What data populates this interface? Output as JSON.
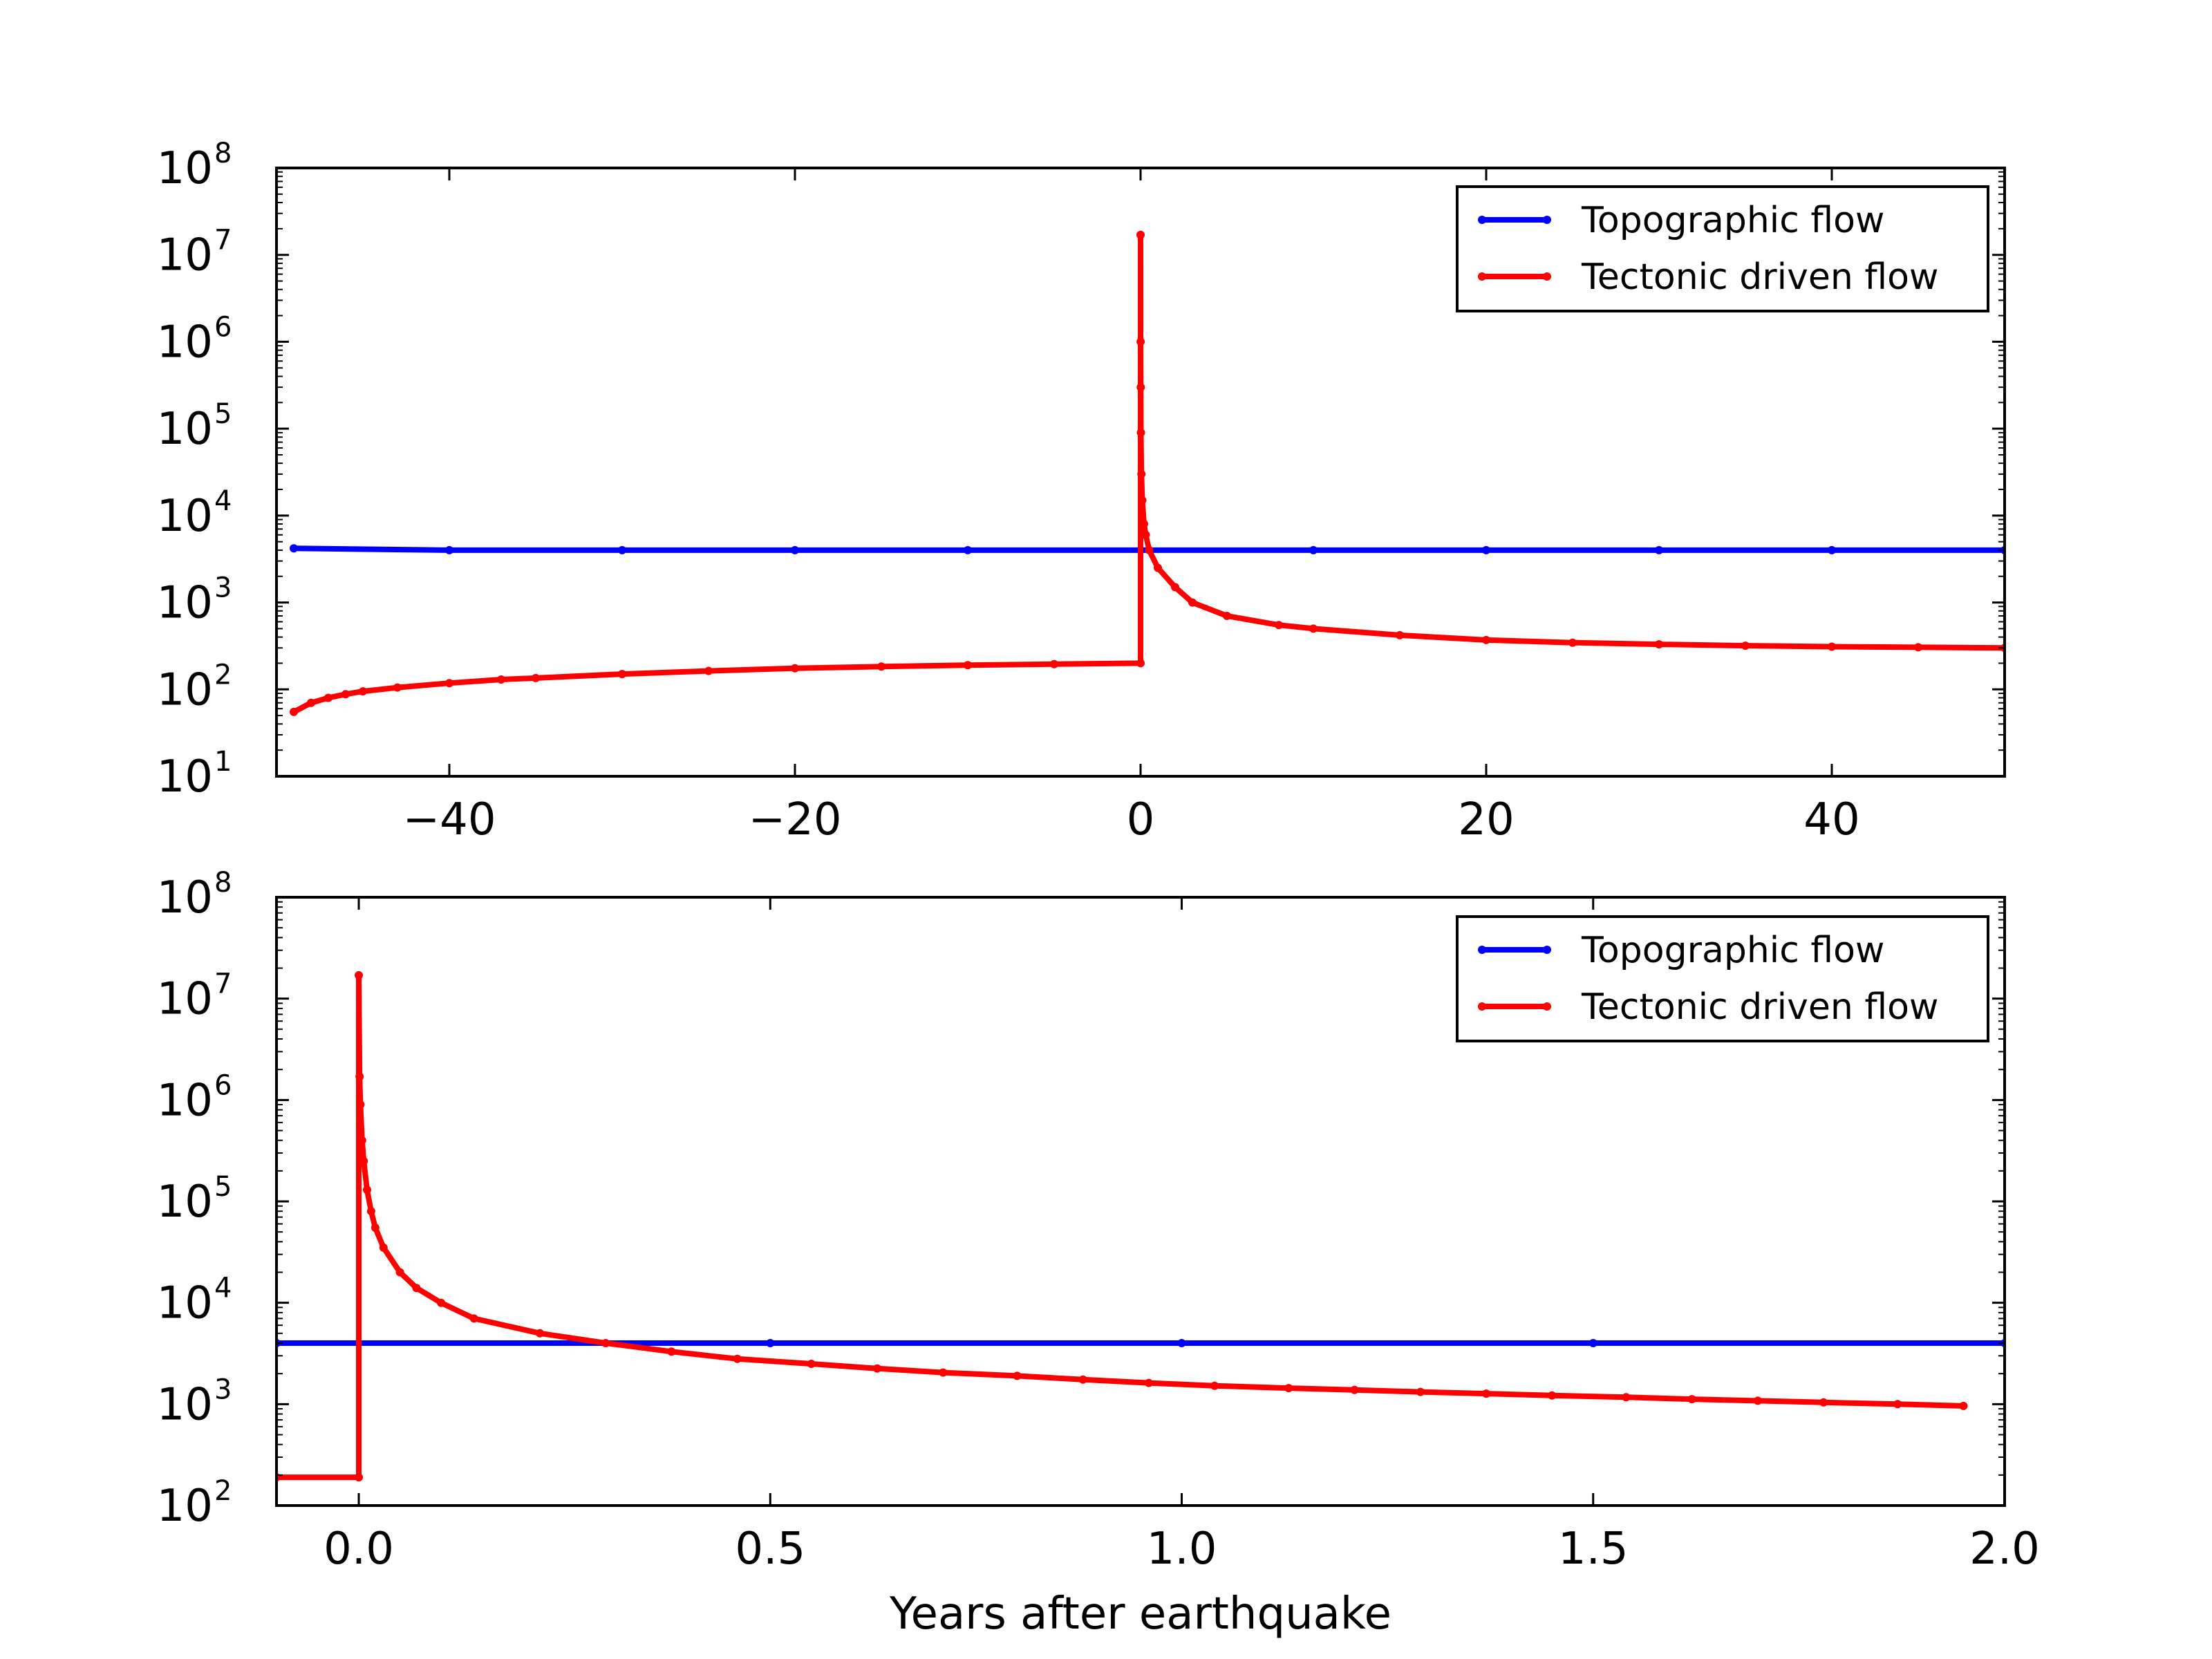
{
  "chart_data": [
    {
      "type": "line",
      "title": "",
      "xlabel": "",
      "ylabel": "",
      "xlim": [
        -50,
        50
      ],
      "ylim": [
        10,
        100000000
      ],
      "yscale": "log",
      "grid": false,
      "legend_position": "top-right",
      "x_ticks": [
        "−40",
        "−20",
        "0",
        "20",
        "40"
      ],
      "y_ticks": [
        {
          "base": "10",
          "exp": "1"
        },
        {
          "base": "10",
          "exp": "2"
        },
        {
          "base": "10",
          "exp": "3"
        },
        {
          "base": "10",
          "exp": "4"
        },
        {
          "base": "10",
          "exp": "5"
        },
        {
          "base": "10",
          "exp": "6"
        },
        {
          "base": "10",
          "exp": "7"
        },
        {
          "base": "10",
          "exp": "8"
        }
      ],
      "series": [
        {
          "name": "Topographic flow",
          "color": "#0000ff",
          "x": [
            -49,
            -40,
            -30,
            -20,
            -10,
            0,
            10,
            20,
            30,
            40,
            50
          ],
          "y": [
            4200,
            4000,
            4000,
            4000,
            4000,
            4000,
            4000,
            4000,
            4000,
            4000,
            4000
          ]
        },
        {
          "name": "Tectonic driven flow",
          "color": "#ff0000",
          "x": [
            -49,
            -48,
            -47,
            -46,
            -45,
            -43,
            -40,
            -37,
            -35,
            -30,
            -25,
            -20,
            -15,
            -10,
            -5,
            0,
            0,
            0.005,
            0.01,
            0.02,
            0.05,
            0.1,
            0.2,
            0.3,
            0.5,
            1,
            2,
            3,
            5,
            8,
            10,
            15,
            20,
            25,
            30,
            35,
            40,
            45,
            50
          ],
          "y": [
            55,
            70,
            80,
            88,
            95,
            105,
            118,
            130,
            135,
            150,
            163,
            175,
            183,
            190,
            195,
            200,
            17000000,
            1000000,
            300000,
            90000,
            30000,
            15000,
            8000,
            6000,
            4000,
            2500,
            1500,
            1000,
            700,
            550,
            500,
            420,
            370,
            345,
            330,
            318,
            310,
            305,
            300
          ]
        }
      ]
    },
    {
      "type": "line",
      "title": "",
      "xlabel": "Years after earthquake",
      "ylabel": "",
      "xlim": [
        -0.1,
        2.0
      ],
      "ylim": [
        100,
        100000000
      ],
      "yscale": "log",
      "grid": false,
      "legend_position": "top-right",
      "x_ticks": [
        "0.0",
        "0.5",
        "1.0",
        "1.5",
        "2.0"
      ],
      "y_ticks": [
        {
          "base": "10",
          "exp": "2"
        },
        {
          "base": "10",
          "exp": "3"
        },
        {
          "base": "10",
          "exp": "4"
        },
        {
          "base": "10",
          "exp": "5"
        },
        {
          "base": "10",
          "exp": "6"
        },
        {
          "base": "10",
          "exp": "7"
        },
        {
          "base": "10",
          "exp": "8"
        }
      ],
      "series": [
        {
          "name": "Topographic flow",
          "color": "#0000ff",
          "x": [
            -0.1,
            0.0,
            0.5,
            1.0,
            1.5,
            2.0
          ],
          "y": [
            4000,
            4000,
            4000,
            4000,
            4000,
            4000
          ]
        },
        {
          "name": "Tectonic driven flow",
          "color": "#ff0000",
          "x": [
            -0.1,
            0.0,
            0.0,
            0.001,
            0.002,
            0.004,
            0.006,
            0.01,
            0.015,
            0.02,
            0.03,
            0.05,
            0.07,
            0.1,
            0.14,
            0.22,
            0.3,
            0.38,
            0.46,
            0.55,
            0.63,
            0.71,
            0.8,
            0.88,
            0.96,
            1.04,
            1.13,
            1.21,
            1.29,
            1.37,
            1.45,
            1.54,
            1.62,
            1.7,
            1.78,
            1.87,
            1.95
          ],
          "y": [
            190,
            190,
            17000000,
            1700000,
            900000,
            400000,
            250000,
            130000,
            80000,
            55000,
            35000,
            20000,
            14000,
            10000,
            7000,
            5000,
            4000,
            3300,
            2800,
            2500,
            2250,
            2050,
            1900,
            1750,
            1620,
            1520,
            1440,
            1380,
            1320,
            1270,
            1220,
            1170,
            1120,
            1080,
            1040,
            1000,
            960
          ]
        }
      ]
    }
  ]
}
